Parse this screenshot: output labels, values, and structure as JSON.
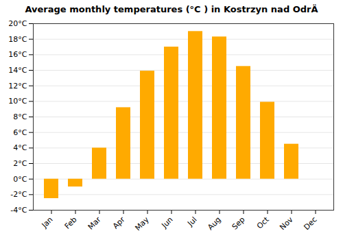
{
  "chart_data": {
    "type": "bar",
    "title": "Average monthly temperatures (°C ) in Kostrzyn nad OdrÄ",
    "categories": [
      "Jan",
      "Feb",
      "Mar",
      "Apr",
      "May",
      "Jun",
      "Jul",
      "Aug",
      "Sep",
      "Oct",
      "Nov",
      "Dec"
    ],
    "values": [
      -2.5,
      -1.0,
      4.0,
      9.2,
      13.9,
      17.0,
      19.0,
      18.3,
      14.5,
      9.9,
      4.5,
      0.0
    ],
    "color": "#FFAA00",
    "ylim": [
      -4,
      20
    ],
    "yticks": [
      {
        "value": -4,
        "label": "-4°C"
      },
      {
        "value": -2,
        "label": "-2°C"
      },
      {
        "value": 0,
        "label": "0°C"
      },
      {
        "value": 2,
        "label": "2°C"
      },
      {
        "value": 4,
        "label": "4°C"
      },
      {
        "value": 6,
        "label": "6°C"
      },
      {
        "value": 8,
        "label": "8°C"
      },
      {
        "value": 10,
        "label": "10°C"
      },
      {
        "value": 12,
        "label": "12°C"
      },
      {
        "value": 14,
        "label": "14°C"
      },
      {
        "value": 16,
        "label": "16°C"
      },
      {
        "value": 18,
        "label": "18°C"
      },
      {
        "value": 20,
        "label": "20°C"
      }
    ],
    "grid": true
  }
}
